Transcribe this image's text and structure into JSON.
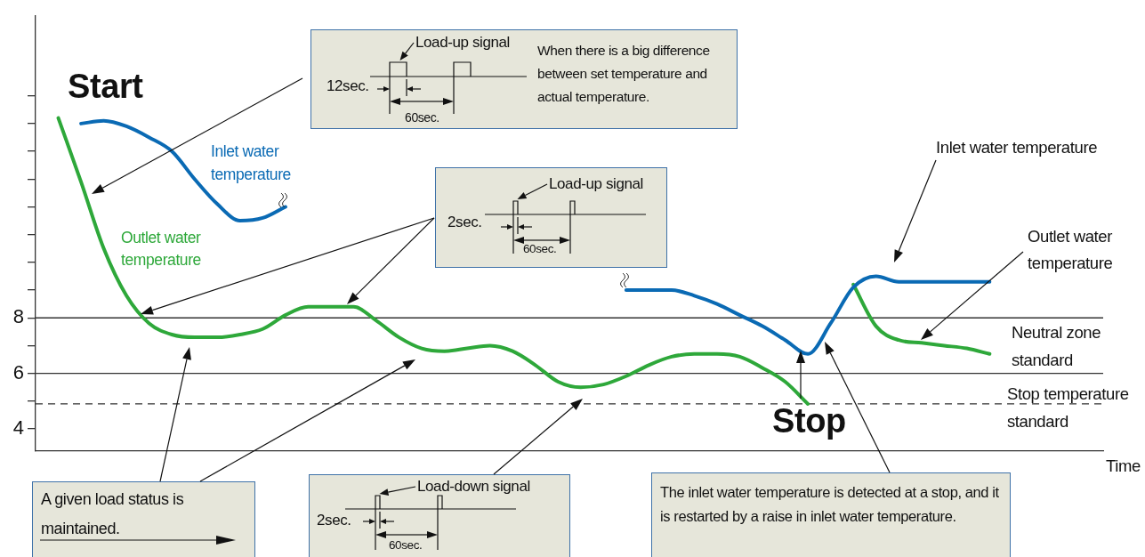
{
  "chart_data": {
    "type": "line",
    "categories": [
      null,
      null,
      null,
      null,
      null,
      null,
      null,
      null,
      null,
      null,
      null,
      null,
      null,
      null,
      null,
      null,
      null,
      null,
      null,
      null,
      null,
      null,
      null,
      null,
      null,
      null,
      null,
      null,
      null,
      null,
      null,
      null,
      null,
      null,
      null,
      null,
      null,
      null,
      null,
      null,
      null,
      null,
      null,
      null,
      null,
      null,
      null,
      null
    ],
    "series": [
      {
        "name": "Inlet water temperature",
        "color": "#0a6ab4",
        "values": [
          null,
          null,
          15.0,
          15.1,
          14.9,
          14.5,
          14.0,
          13.0,
          12.1,
          11.5,
          11.6,
          12.0,
          null,
          null,
          null,
          null,
          null,
          null,
          null,
          null,
          null,
          null,
          null,
          null,
          null,
          null,
          null,
          null,
          null,
          null,
          null,
          null,
          null,
          null,
          null,
          null,
          null,
          null,
          null,
          null,
          null,
          null,
          null,
          null,
          null,
          null,
          null,
          null
        ]
      },
      {
        "name": "Outlet water temperature",
        "color": "#2ea83a",
        "values": [
          null,
          15.2,
          12.9,
          10.5,
          8.8,
          7.8,
          7.4,
          7.3,
          7.3,
          7.4,
          7.6,
          8.1,
          8.4,
          8.4,
          8.4,
          7.9,
          7.3,
          6.9,
          6.8,
          6.9,
          7.0,
          6.8,
          6.3,
          5.7,
          5.5,
          5.6,
          5.9,
          6.3,
          6.6,
          6.7,
          6.7,
          6.6,
          6.2,
          5.7,
          4.9,
          null,
          null,
          null,
          null,
          null,
          null,
          null,
          null,
          null,
          null,
          null,
          null,
          null
        ]
      },
      {
        "color": "#0a6ab4",
        "values": [
          null,
          null,
          null,
          null,
          null,
          null,
          null,
          null,
          null,
          null,
          null,
          null,
          null,
          null,
          null,
          null,
          null,
          null,
          null,
          null,
          null,
          null,
          null,
          null,
          null,
          null,
          9.0,
          9.0,
          9.0,
          8.8,
          8.5,
          8.1,
          7.7,
          7.2,
          6.7,
          7.8,
          9.1,
          9.5,
          9.3,
          9.3,
          9.3,
          9.3,
          9.3,
          null,
          null,
          null,
          null,
          null
        ]
      },
      {
        "name": "Outlet water temperature",
        "color": "#2ea83a",
        "values": [
          null,
          null,
          null,
          null,
          null,
          null,
          null,
          null,
          null,
          null,
          null,
          null,
          null,
          null,
          null,
          null,
          null,
          null,
          null,
          null,
          null,
          null,
          null,
          null,
          null,
          null,
          null,
          null,
          null,
          null,
          null,
          null,
          null,
          null,
          null,
          null,
          9.2,
          7.7,
          7.2,
          7.1,
          7.0,
          6.9,
          6.7,
          null,
          null,
          null,
          null,
          null
        ]
      }
    ],
    "ylim": [
      3.2,
      18.9
    ],
    "yticks": [
      4,
      {
        "value": 5,
        "label": null
      },
      6,
      {
        "value": 7,
        "label": null
      },
      8,
      {
        "value": 9,
        "label": null
      },
      {
        "value": 10,
        "label": null
      },
      {
        "value": 11,
        "label": null
      },
      {
        "value": 12,
        "label": null
      },
      {
        "value": 13,
        "label": null
      },
      {
        "value": 14,
        "label": null
      },
      {
        "value": 15,
        "label": null
      },
      {
        "value": 16,
        "label": null
      }
    ],
    "tick_labels": "y",
    "grid": false,
    "legend": false,
    "marker": "none",
    "line_style": "solid",
    "ref_lines": [
      {
        "axis": "y",
        "value": 8,
        "label": "Neutral zone standard",
        "color": "#333333",
        "line_style": "solid"
      },
      {
        "axis": "y",
        "value": 6,
        "color": "#333333",
        "line_style": "solid"
      },
      {
        "axis": "y",
        "value": 4.9,
        "label": "Stop temperature standard",
        "color": "#333333",
        "line_style": "dashed"
      }
    ],
    "annotations": [
      "Start",
      "Stop",
      "Load-up signal",
      "12sec.",
      "60sec.",
      "When there is a big difference between set temperature and actual temperature.",
      "Load-up signal",
      "2sec.",
      "60sec.",
      "Load-down signal",
      "2sec.",
      "60sec.",
      "A given load status is maintained.",
      "The inlet water temperature is detected at a stop, and it is restarted by a raise in inlet water temperature.",
      "Time",
      "Inlet water temperature"
    ]
  }
}
